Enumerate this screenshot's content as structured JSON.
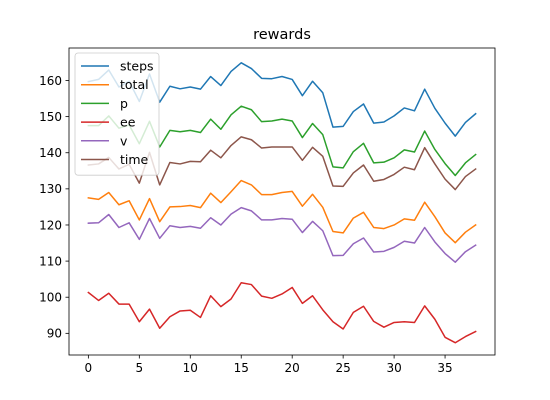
{
  "chart_data": {
    "type": "line",
    "title": "rewards",
    "xlabel": "",
    "ylabel": "",
    "xlim": [
      -1.9,
      39.9
    ],
    "ylim": [
      84,
      169
    ],
    "xticks": [
      0,
      5,
      10,
      15,
      20,
      25,
      30,
      35
    ],
    "yticks": [
      90,
      100,
      110,
      120,
      130,
      140,
      150,
      160
    ],
    "grid": false,
    "legend_position": "top-left",
    "x": [
      0,
      1,
      2,
      3,
      4,
      5,
      6,
      7,
      8,
      9,
      10,
      11,
      12,
      13,
      14,
      15,
      16,
      17,
      18,
      19,
      20,
      21,
      22,
      23,
      24,
      25,
      26,
      27,
      28,
      29,
      30,
      31,
      32,
      33,
      34,
      35,
      36,
      37,
      38
    ],
    "series": [
      {
        "name": "steps",
        "color": "#1f77b4",
        "values": [
          159.7,
          160.3,
          162.9,
          158.2,
          159.8,
          154.2,
          161.8,
          154.0,
          158.4,
          157.7,
          158.2,
          157.6,
          161.1,
          158.6,
          162.5,
          164.9,
          163.3,
          160.6,
          160.5,
          161.1,
          160.3,
          155.8,
          159.8,
          156.6,
          147.1,
          147.3,
          151.4,
          153.5,
          148.2,
          148.5,
          150.2,
          152.4,
          151.6,
          157.6,
          152.3,
          148.2,
          144.6,
          148.4,
          150.8
        ]
      },
      {
        "name": "total",
        "color": "#ff7f0e",
        "values": [
          127.5,
          127.1,
          129.0,
          125.6,
          126.7,
          121.4,
          127.3,
          120.9,
          125.0,
          125.1,
          125.4,
          124.8,
          128.8,
          126.2,
          129.2,
          132.3,
          131.1,
          128.4,
          128.4,
          129.0,
          129.3,
          125.2,
          128.5,
          124.9,
          118.2,
          117.8,
          121.9,
          123.5,
          119.3,
          119.0,
          120.0,
          121.7,
          121.3,
          126.3,
          122.3,
          117.8,
          115.1,
          118.0,
          120.0
        ]
      },
      {
        "name": "p",
        "color": "#2ca02c",
        "values": [
          147.5,
          147.5,
          150.2,
          146.8,
          147.7,
          142.5,
          148.7,
          141.6,
          146.2,
          145.8,
          146.2,
          145.6,
          149.3,
          146.5,
          150.5,
          152.9,
          151.9,
          148.6,
          148.8,
          149.3,
          148.8,
          144.2,
          148.1,
          145.0,
          136.1,
          135.8,
          140.3,
          142.6,
          137.2,
          137.4,
          138.6,
          140.8,
          140.2,
          146.0,
          140.9,
          137.0,
          133.7,
          137.2,
          139.5
        ]
      },
      {
        "name": "ee",
        "color": "#d62728",
        "values": [
          101.3,
          99.1,
          101.1,
          98.1,
          98.1,
          93.2,
          96.7,
          91.4,
          94.6,
          96.2,
          96.4,
          94.4,
          100.4,
          97.4,
          99.5,
          104.0,
          103.5,
          100.3,
          99.7,
          100.9,
          102.7,
          98.3,
          100.4,
          96.5,
          93.2,
          91.2,
          95.8,
          97.5,
          93.3,
          91.7,
          93.0,
          93.2,
          93.0,
          97.6,
          93.9,
          88.9,
          87.4,
          89.1,
          90.5
        ]
      },
      {
        "name": "v",
        "color": "#9467bd",
        "values": [
          120.5,
          120.6,
          122.9,
          119.3,
          120.6,
          116.0,
          121.8,
          116.3,
          119.8,
          119.3,
          119.6,
          119.1,
          122.0,
          120.0,
          123.0,
          124.8,
          123.9,
          121.4,
          121.4,
          121.8,
          121.6,
          117.9,
          121.0,
          118.4,
          111.5,
          111.6,
          114.8,
          116.4,
          112.5,
          112.7,
          113.8,
          115.5,
          115.0,
          119.3,
          115.3,
          112.1,
          109.7,
          112.6,
          114.4
        ]
      },
      {
        "name": "time",
        "color": "#8c564b",
        "values": [
          136.6,
          136.9,
          138.7,
          135.5,
          136.8,
          131.6,
          140.1,
          131.1,
          137.3,
          136.9,
          137.6,
          137.5,
          140.7,
          138.6,
          142.0,
          144.4,
          143.6,
          141.3,
          141.6,
          141.6,
          141.6,
          137.9,
          141.5,
          139.0,
          130.8,
          130.7,
          134.4,
          136.6,
          132.1,
          132.6,
          134.0,
          136.0,
          135.3,
          141.4,
          136.9,
          132.7,
          129.8,
          133.4,
          135.5
        ]
      }
    ]
  }
}
